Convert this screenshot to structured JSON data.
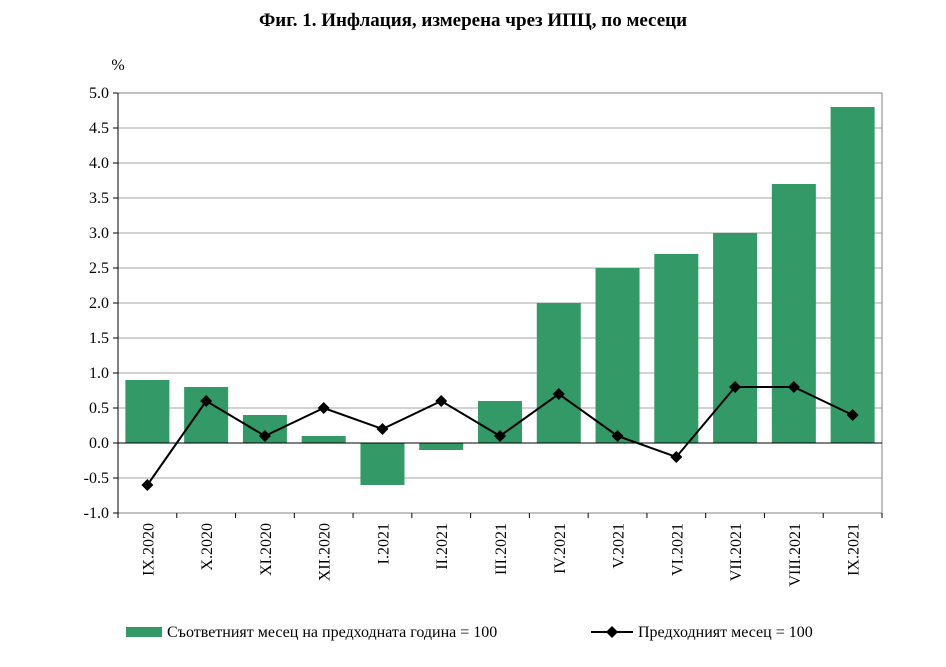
{
  "chart_data": {
    "type": "bar",
    "title": "Фиг. 1. Инфлация, измерена чрез ИПЦ, по месеци",
    "ylabel": "%",
    "xlabel": "",
    "ylim": [
      -1.0,
      5.0
    ],
    "yticks": [
      "5.0",
      "4.5",
      "4.0",
      "3.5",
      "3.0",
      "2.5",
      "2.0",
      "1.5",
      "1.0",
      "0.5",
      "0.0",
      "-0.5",
      "-1.0"
    ],
    "grid": true,
    "legend_position": "bottom",
    "categories": [
      "IX.2020",
      "X.2020",
      "XI.2020",
      "XII.2020",
      "I.2021",
      "II.2021",
      "III.2021",
      "IV.2021",
      "V.2021",
      "VI.2021",
      "VII.2021",
      "VIII.2021",
      "IX.2021"
    ],
    "series": [
      {
        "name": "Съответният месец на предходната година = 100",
        "type": "bar",
        "color": "#339966",
        "values": [
          0.9,
          0.8,
          0.4,
          0.1,
          -0.6,
          -0.1,
          0.6,
          2.0,
          2.5,
          2.7,
          3.0,
          3.7,
          4.8
        ]
      },
      {
        "name": "Предходният месец = 100",
        "type": "line",
        "color": "#000000",
        "marker": "diamond",
        "values": [
          -0.6,
          0.6,
          0.1,
          0.5,
          0.2,
          0.6,
          0.1,
          0.7,
          0.1,
          -0.2,
          0.8,
          0.8,
          0.4
        ]
      }
    ]
  }
}
